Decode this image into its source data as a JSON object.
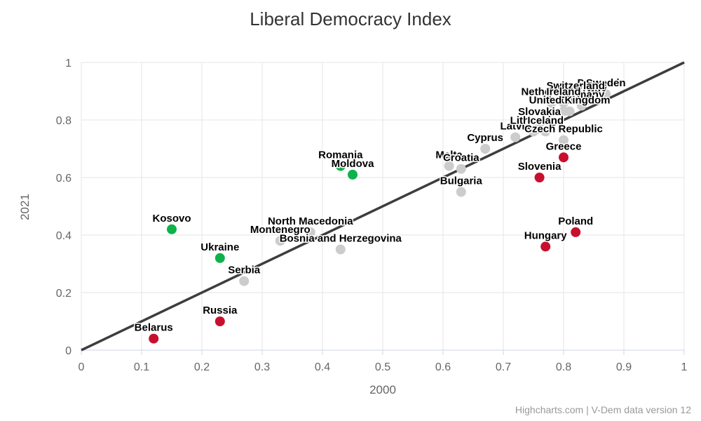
{
  "title": "Liberal Democracy Index",
  "credit": "Highcharts.com | V-Dem data version 12",
  "colors": {
    "improved": "#0fb14b",
    "declined": "#c8102e",
    "stable": "#cccccc",
    "diagonal_line": "#3d3d40",
    "gridline": "#e6e6e6",
    "axis_line": "#ccd6eb",
    "title_text": "#333333",
    "axis_text": "#666666",
    "credit_text": "#999999",
    "data_label_text": "#000000"
  },
  "chart_data": {
    "type": "scatter",
    "title": "Liberal Democracy Index",
    "xlabel": "2000",
    "ylabel": "2021",
    "xlim": [
      0,
      1
    ],
    "ylim": [
      0,
      1
    ],
    "grid": true,
    "legend": false,
    "x_ticks": [
      0,
      0.1,
      0.2,
      0.3,
      0.4,
      0.5,
      0.6,
      0.7,
      0.8,
      0.9,
      1
    ],
    "x_tick_labels": [
      "0",
      "0.1",
      "0.2",
      "0.3",
      "0.4",
      "0.5",
      "0.6",
      "0.7",
      "0.8",
      "0.9",
      "1"
    ],
    "y_ticks": [
      0,
      0.2,
      0.4,
      0.6,
      0.8,
      1
    ],
    "y_tick_labels": [
      "0",
      "0.2",
      "0.4",
      "0.6",
      "0.8",
      "1"
    ],
    "reference_line": {
      "type": "diagonal",
      "from": [
        0,
        0
      ],
      "to": [
        1,
        1
      ]
    },
    "series": [
      {
        "name": "Stable",
        "color": "#cccccc",
        "points": [
          {
            "country": "Serbia",
            "x": 0.27,
            "y": 0.24
          },
          {
            "country": "Montenegro",
            "x": 0.33,
            "y": 0.38
          },
          {
            "country": "North Macedonia",
            "x": 0.38,
            "y": 0.41
          },
          {
            "country": "Bosnia and Herzegovina",
            "x": 0.43,
            "y": 0.35
          },
          {
            "country": "Bulgaria",
            "x": 0.63,
            "y": 0.55
          },
          {
            "country": "Malta",
            "x": 0.61,
            "y": 0.64
          },
          {
            "country": "Croatia",
            "x": 0.63,
            "y": 0.63
          },
          {
            "country": "Cyprus",
            "x": 0.67,
            "y": 0.7
          },
          {
            "country": "Latvia",
            "x": 0.72,
            "y": 0.74
          },
          {
            "country": "Denmark",
            "x": 0.86,
            "y": 0.89
          },
          {
            "country": "Norway",
            "x": 0.84,
            "y": 0.87
          },
          {
            "country": "Netherlands",
            "x": 0.78,
            "y": 0.86
          },
          {
            "country": "Estonia",
            "x": 0.8,
            "y": 0.83
          },
          {
            "country": "Germany",
            "x": 0.83,
            "y": 0.85
          },
          {
            "country": "United Kingdom",
            "x": 0.81,
            "y": 0.83
          },
          {
            "country": "Lithuania",
            "x": 0.75,
            "y": 0.76
          },
          {
            "country": "Sweden",
            "x": 0.87,
            "y": 0.89
          },
          {
            "country": "Switzerland",
            "x": 0.82,
            "y": 0.88
          },
          {
            "country": "Ireland",
            "x": 0.8,
            "y": 0.86
          },
          {
            "country": "Iceland",
            "x": 0.77,
            "y": 0.76
          },
          {
            "country": "Slovakia",
            "x": 0.76,
            "y": 0.79
          },
          {
            "country": "Czech Republic",
            "x": 0.8,
            "y": 0.73
          }
        ]
      },
      {
        "name": "Improved",
        "color": "#0fb14b",
        "points": [
          {
            "country": "Kosovo",
            "x": 0.15,
            "y": 0.42
          },
          {
            "country": "Ukraine",
            "x": 0.23,
            "y": 0.32
          },
          {
            "country": "Moldova",
            "x": 0.45,
            "y": 0.61
          },
          {
            "country": "Romania",
            "x": 0.43,
            "y": 0.64
          }
        ]
      },
      {
        "name": "Declined",
        "color": "#c8102e",
        "points": [
          {
            "country": "Belarus",
            "x": 0.12,
            "y": 0.04
          },
          {
            "country": "Russia",
            "x": 0.23,
            "y": 0.1
          },
          {
            "country": "Hungary",
            "x": 0.77,
            "y": 0.36
          },
          {
            "country": "Poland",
            "x": 0.82,
            "y": 0.41
          },
          {
            "country": "Slovenia",
            "x": 0.76,
            "y": 0.6
          },
          {
            "country": "Greece",
            "x": 0.8,
            "y": 0.67
          }
        ]
      }
    ]
  }
}
